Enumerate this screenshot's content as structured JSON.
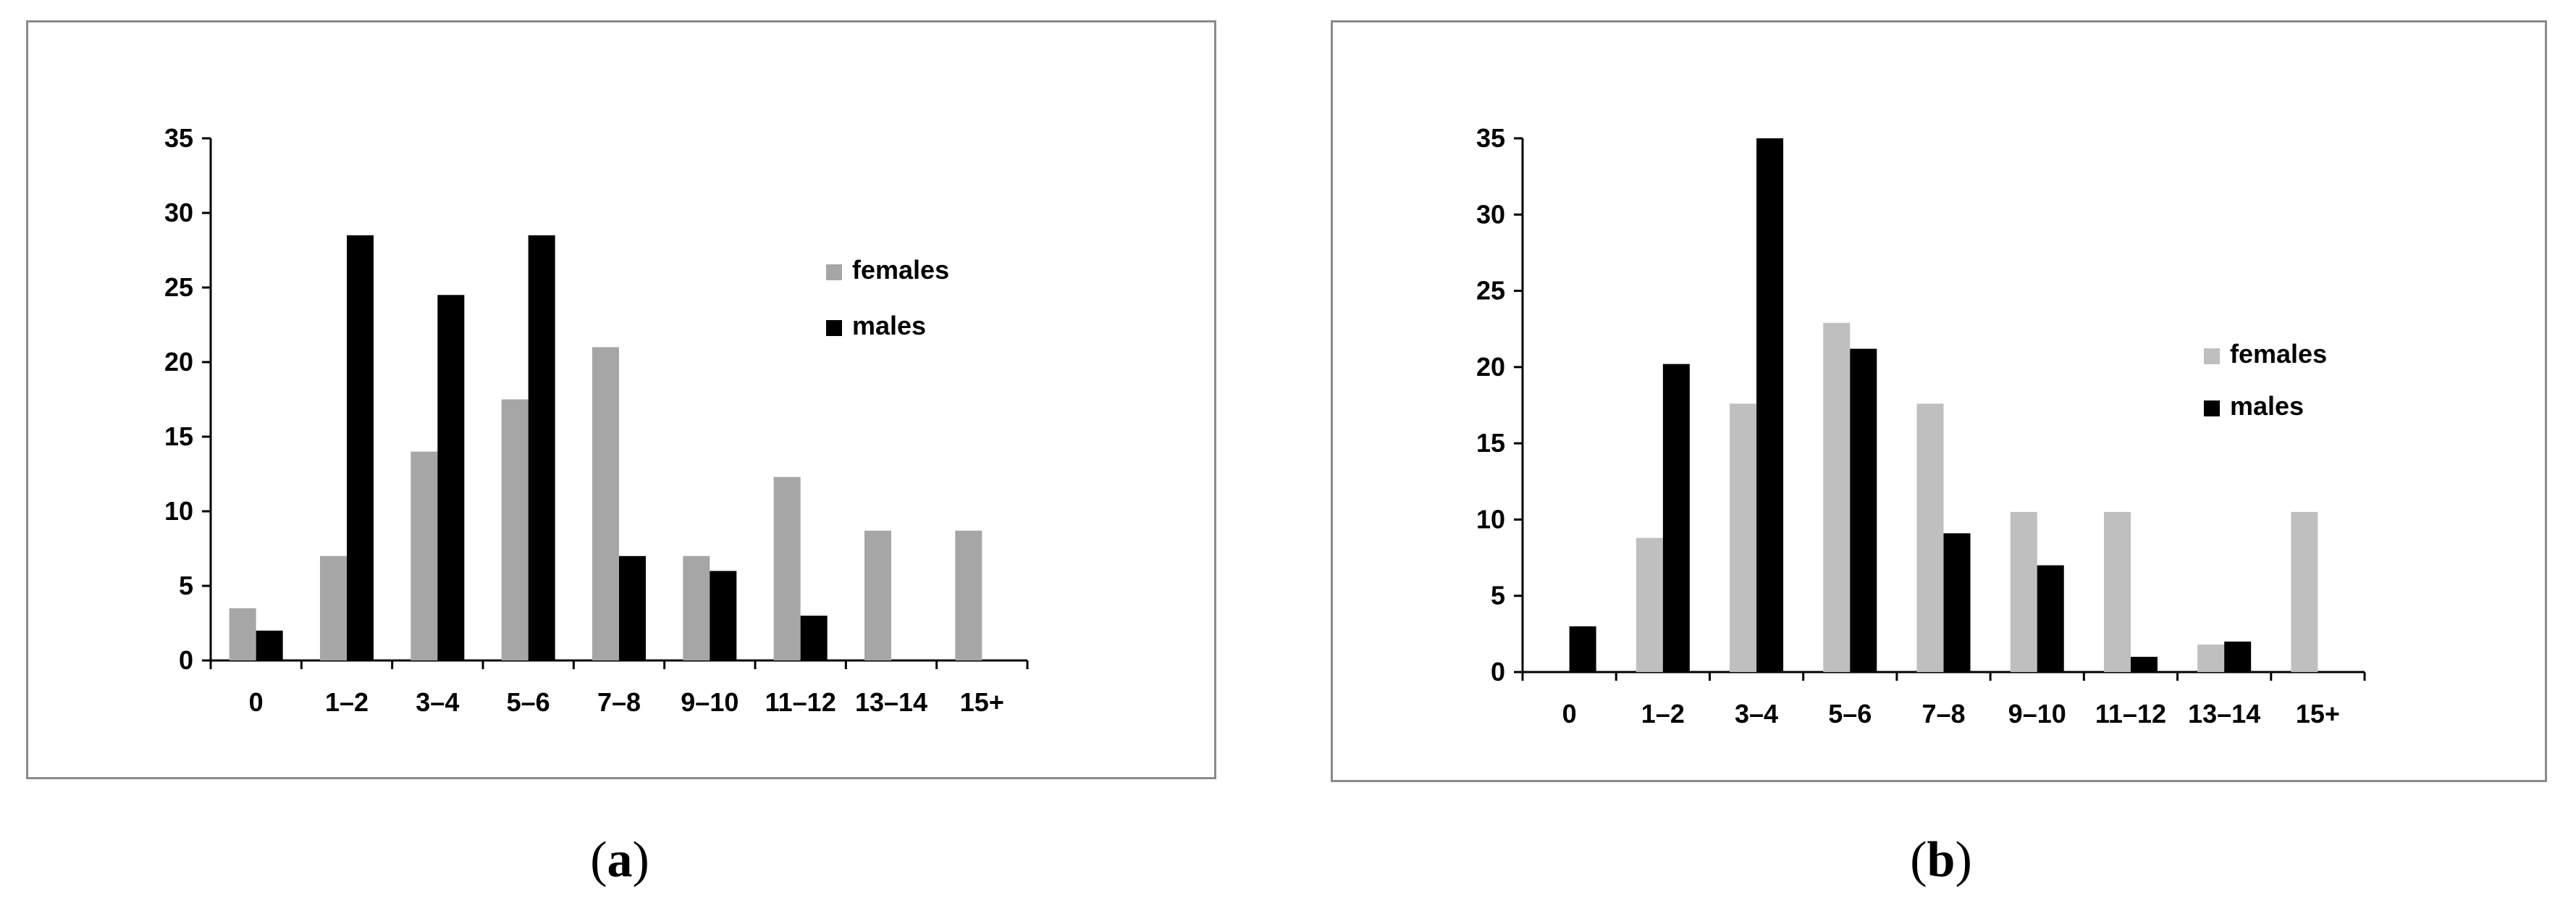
{
  "chart_data": [
    {
      "type": "bar",
      "panel_label": "a",
      "categories": [
        "0",
        "1–2",
        "3–4",
        "5–6",
        "7–8",
        "9–10",
        "11–12",
        "13–14",
        "15+"
      ],
      "series": [
        {
          "name": "females",
          "color": "#a6a6a6",
          "values": [
            3.5,
            7,
            14,
            17.5,
            21,
            7,
            12.3,
            8.7,
            8.7
          ]
        },
        {
          "name": "males",
          "color": "#000000",
          "values": [
            2,
            28.5,
            24.5,
            28.5,
            7,
            6,
            3,
            0,
            0
          ]
        }
      ],
      "ylim": [
        0,
        35
      ],
      "yticks": [
        0,
        5,
        10,
        15,
        20,
        25,
        30,
        35
      ],
      "legend_position": "right",
      "grid": false
    },
    {
      "type": "bar",
      "panel_label": "b",
      "categories": [
        "0",
        "1–2",
        "3–4",
        "5–6",
        "7–8",
        "9–10",
        "11–12",
        "13–14",
        "15+"
      ],
      "series": [
        {
          "name": "females",
          "color": "#bfbfbf",
          "values": [
            0,
            8.8,
            17.6,
            22.9,
            17.6,
            10.5,
            10.5,
            1.8,
            10.5
          ]
        },
        {
          "name": "males",
          "color": "#000000",
          "values": [
            3,
            20.2,
            35,
            21.2,
            9.1,
            7,
            1,
            2,
            0
          ]
        }
      ],
      "ylim": [
        0,
        35
      ],
      "yticks": [
        0,
        5,
        10,
        15,
        20,
        25,
        30,
        35
      ],
      "legend_position": "right",
      "grid": false
    }
  ]
}
